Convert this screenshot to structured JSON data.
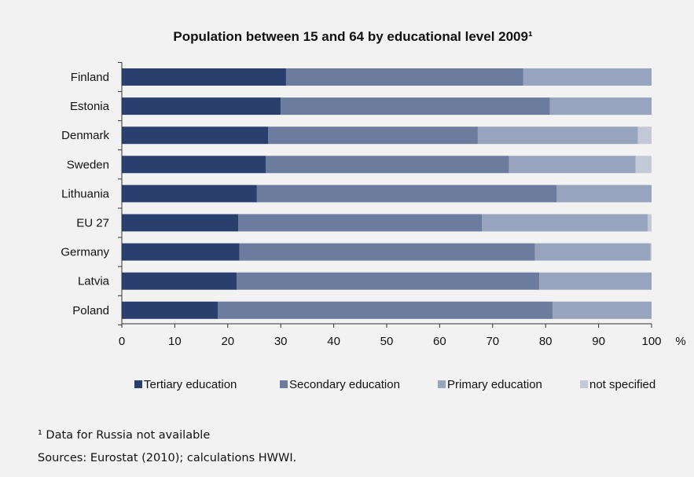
{
  "chart_data": {
    "type": "bar",
    "orientation": "horizontal",
    "stacked": true,
    "title": "Population between 15 and 64 by educational level 2009¹",
    "xlabel": "",
    "x_unit_label": "%",
    "xlim": [
      0,
      100
    ],
    "x_ticks": [
      0,
      10,
      20,
      30,
      40,
      50,
      60,
      70,
      80,
      90,
      100
    ],
    "grid": false,
    "legend_position": "bottom",
    "categories": [
      "Finland",
      "Estonia",
      "Denmark",
      "Sweden",
      "Lithuania",
      "EU 27",
      "Germany",
      "Latvia",
      "Poland"
    ],
    "series": [
      {
        "name": "Tertiary education",
        "color": "#2b3f6e",
        "values": [
          31,
          30,
          27.6,
          27.2,
          25.5,
          22,
          22.2,
          21.7,
          18.1
        ]
      },
      {
        "name": "Secondary education",
        "color": "#6b7c9e",
        "values": [
          44.8,
          50.8,
          39.6,
          45.9,
          56.6,
          46,
          55.8,
          57.1,
          63.2
        ]
      },
      {
        "name": "Primary education",
        "color": "#97a4be",
        "values": [
          24.2,
          19.2,
          30.2,
          23.9,
          17.9,
          31.3,
          21.8,
          21.2,
          18.7
        ]
      },
      {
        "name": "not specified",
        "color": "#c3c9d6",
        "values": [
          0,
          0,
          2.6,
          3,
          0,
          0.7,
          0.2,
          0,
          0
        ]
      }
    ]
  },
  "footnotes": {
    "note": "¹ Data for Russia not available",
    "source": "Sources: Eurostat (2010); calculations HWWI."
  }
}
